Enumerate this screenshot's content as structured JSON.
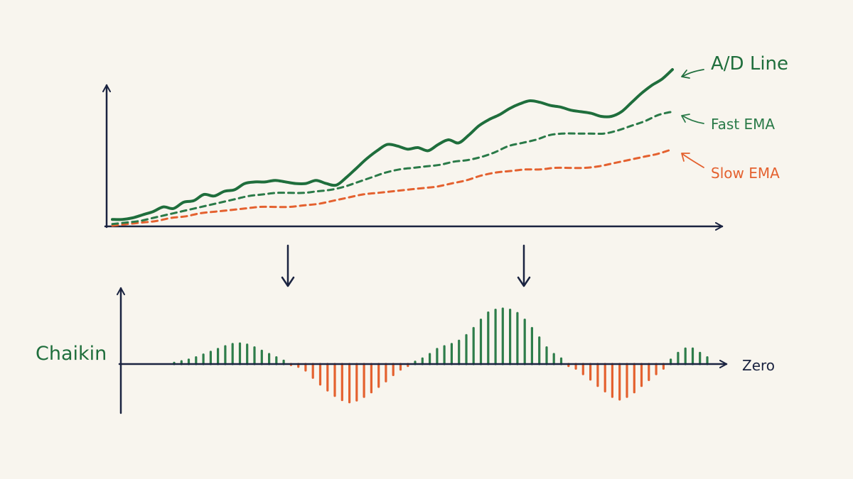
{
  "labels": {
    "ad_line": "A/D Line",
    "fast_ema": "Fast EMA",
    "slow_ema": "Slow EMA",
    "oscillator": "Chaikin",
    "zero": "Zero"
  },
  "colors": {
    "background": "#f8f5ee",
    "axis": "#1a2340",
    "ad_line": "#1f6e3c",
    "fast_ema": "#2a7a48",
    "slow_ema": "#e4612f",
    "bar_positive": "#2e7d4a",
    "bar_negative": "#e4612f"
  },
  "chart_data": [
    {
      "type": "line",
      "panel": "price",
      "series": [
        {
          "name": "A/D Line",
          "style": "solid",
          "values": [
            0.04,
            0.04,
            0.05,
            0.07,
            0.09,
            0.12,
            0.11,
            0.15,
            0.16,
            0.2,
            0.19,
            0.22,
            0.23,
            0.27,
            0.28,
            0.28,
            0.29,
            0.28,
            0.27,
            0.27,
            0.29,
            0.27,
            0.26,
            0.31,
            0.37,
            0.43,
            0.48,
            0.52,
            0.51,
            0.49,
            0.5,
            0.48,
            0.52,
            0.55,
            0.53,
            0.58,
            0.64,
            0.68,
            0.71,
            0.75,
            0.78,
            0.8,
            0.79,
            0.77,
            0.76,
            0.74,
            0.73,
            0.72,
            0.7,
            0.7,
            0.73,
            0.79,
            0.85,
            0.9,
            0.94,
            1.0
          ]
        },
        {
          "name": "Fast EMA",
          "style": "dashed",
          "values": [
            0.01,
            0.02,
            0.03,
            0.05,
            0.07,
            0.09,
            0.11,
            0.13,
            0.15,
            0.17,
            0.19,
            0.2,
            0.21,
            0.21,
            0.21,
            0.22,
            0.23,
            0.25,
            0.28,
            0.31,
            0.34,
            0.36,
            0.37,
            0.38,
            0.39,
            0.41,
            0.42,
            0.44,
            0.47,
            0.51,
            0.53,
            0.55,
            0.58,
            0.59,
            0.59,
            0.59,
            0.59,
            0.61,
            0.64,
            0.67,
            0.71,
            0.73
          ]
        },
        {
          "name": "Slow EMA",
          "style": "dashed",
          "values": [
            0.0,
            0.01,
            0.02,
            0.03,
            0.05,
            0.06,
            0.08,
            0.09,
            0.1,
            0.11,
            0.12,
            0.12,
            0.12,
            0.13,
            0.14,
            0.16,
            0.18,
            0.2,
            0.21,
            0.22,
            0.23,
            0.24,
            0.25,
            0.27,
            0.29,
            0.32,
            0.34,
            0.35,
            0.36,
            0.36,
            0.37,
            0.37,
            0.37,
            0.38,
            0.4,
            0.42,
            0.44,
            0.46,
            0.49
          ]
        }
      ]
    },
    {
      "type": "bar",
      "panel": "oscillator",
      "title": "Chaikin",
      "baseline": "Zero",
      "values": [
        0.02,
        0.05,
        0.08,
        0.12,
        0.17,
        0.22,
        0.27,
        0.32,
        0.36,
        0.37,
        0.35,
        0.3,
        0.24,
        0.18,
        0.12,
        0.06,
        -0.02,
        -0.06,
        -0.14,
        -0.3,
        -0.45,
        -0.58,
        -0.7,
        -0.79,
        -0.84,
        -0.8,
        -0.72,
        -0.62,
        -0.5,
        -0.38,
        -0.24,
        -0.12,
        -0.04,
        0.04,
        0.1,
        0.18,
        0.27,
        0.32,
        0.36,
        0.42,
        0.52,
        0.65,
        0.8,
        0.93,
        0.98,
        1.0,
        0.98,
        0.92,
        0.8,
        0.65,
        0.48,
        0.3,
        0.18,
        0.1,
        -0.04,
        -0.1,
        -0.22,
        -0.34,
        -0.48,
        -0.6,
        -0.72,
        -0.78,
        -0.72,
        -0.62,
        -0.48,
        -0.35,
        -0.22,
        -0.1,
        0.08,
        0.2,
        0.28,
        0.28,
        0.2,
        0.12
      ]
    }
  ]
}
